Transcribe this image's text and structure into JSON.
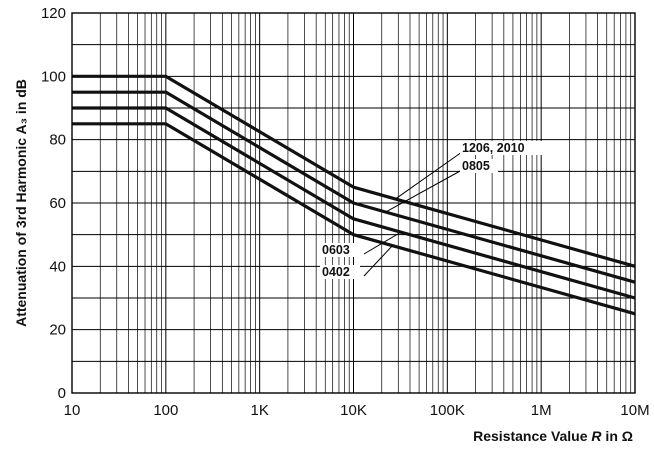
{
  "chart_data": {
    "type": "line",
    "title": "",
    "xlabel": {
      "prefix": "Resistance Value ",
      "var": "R",
      "suffix": " in Ω"
    },
    "ylabel": "Attenuation of 3rd Harmonic A₃ in dB",
    "x_scale": "log",
    "xlim": [
      10,
      10000000
    ],
    "ylim": [
      0,
      120
    ],
    "x_ticks": [
      10,
      100,
      1000,
      10000,
      100000,
      1000000,
      10000000
    ],
    "x_tick_labels": [
      "10",
      "100",
      "1K",
      "10K",
      "100K",
      "1M",
      "10M"
    ],
    "y_ticks": [
      0,
      20,
      40,
      60,
      80,
      100,
      120
    ],
    "y_tick_labels": [
      "0",
      "20",
      "40",
      "60",
      "80",
      "100",
      "120"
    ],
    "grid": true,
    "series": [
      {
        "name": "1206, 2010",
        "x": [
          10,
          100,
          10000,
          10000000
        ],
        "y": [
          100,
          100,
          65,
          40
        ]
      },
      {
        "name": "0805",
        "x": [
          10,
          100,
          10000,
          10000000
        ],
        "y": [
          95,
          95,
          60,
          35
        ]
      },
      {
        "name": "0603",
        "x": [
          10,
          100,
          10000,
          10000000
        ],
        "y": [
          90,
          90,
          55,
          30
        ]
      },
      {
        "name": "0402",
        "x": [
          10,
          100,
          10000,
          10000000
        ],
        "y": [
          85,
          85,
          50,
          25
        ]
      }
    ],
    "annotations": [
      {
        "text": "1206, 2010",
        "series": "1206, 2010"
      },
      {
        "text": "0805",
        "series": "0805"
      },
      {
        "text": "0603",
        "series": "0603"
      },
      {
        "text": "0402",
        "series": "0402"
      }
    ]
  }
}
